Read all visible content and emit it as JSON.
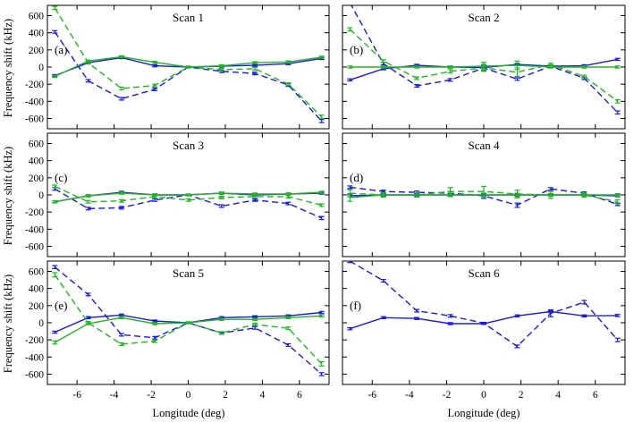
{
  "colors": {
    "blue": "#1a1adc",
    "green": "#22b522",
    "axis": "#000000"
  },
  "chart_data": {
    "type": "line",
    "layout": "3x2 grid of panels, shared x and y axes",
    "xlabel": "Longitude (deg)",
    "ylabel": "Frequency shift (kHz)",
    "xlim": [
      -7.6,
      7.6
    ],
    "ylim": [
      -720,
      720
    ],
    "xticks": [
      -6,
      -4,
      -2,
      0,
      2,
      4,
      6
    ],
    "yticks": [
      -600,
      -400,
      -200,
      0,
      200,
      400,
      600
    ],
    "x": [
      -7.2,
      -5.4,
      -3.6,
      -1.8,
      0,
      1.8,
      3.6,
      5.4,
      7.2
    ],
    "series_styles": [
      {
        "color": "blue",
        "dash": "solid"
      },
      {
        "color": "blue",
        "dash": "dashed"
      },
      {
        "color": "green",
        "dash": "solid"
      },
      {
        "color": "green",
        "dash": "dashed"
      }
    ],
    "panels": [
      {
        "title": "Scan 1",
        "letter": "(a)",
        "series": [
          {
            "values": [
              -100,
              50,
              110,
              15,
              0,
              10,
              20,
              40,
              100
            ],
            "err": [
              12,
              12,
              12,
              12,
              10,
              12,
              12,
              12,
              12
            ]
          },
          {
            "values": [
              410,
              -160,
              -370,
              -260,
              0,
              -50,
              -75,
              -210,
              -630
            ],
            "err": [
              15,
              15,
              15,
              15,
              10,
              15,
              15,
              15,
              18
            ]
          },
          {
            "values": [
              -110,
              70,
              120,
              55,
              0,
              15,
              50,
              60,
              115
            ],
            "err": [
              12,
              12,
              12,
              12,
              10,
              12,
              12,
              12,
              12
            ]
          },
          {
            "values": [
              690,
              50,
              -250,
              -215,
              0,
              -30,
              -20,
              -200,
              -580
            ],
            "err": [
              18,
              15,
              15,
              15,
              10,
              15,
              15,
              15,
              18
            ]
          }
        ]
      },
      {
        "title": "Scan 2",
        "letter": "(b)",
        "series": [
          {
            "values": [
              -150,
              -20,
              20,
              0,
              -5,
              30,
              10,
              15,
              90
            ],
            "err": [
              12,
              12,
              12,
              12,
              30,
              12,
              12,
              12,
              12
            ]
          },
          {
            "values": [
              750,
              40,
              -220,
              -150,
              -10,
              -140,
              10,
              -130,
              -530
            ],
            "err": [
              18,
              15,
              15,
              15,
              30,
              15,
              15,
              15,
              18
            ]
          },
          {
            "values": [
              0,
              0,
              0,
              0,
              10,
              20,
              0,
              0,
              0
            ],
            "err": [
              12,
              12,
              12,
              12,
              45,
              50,
              12,
              12,
              12
            ]
          },
          {
            "values": [
              440,
              70,
              -130,
              -50,
              -10,
              -60,
              30,
              -110,
              -400
            ],
            "err": [
              18,
              15,
              15,
              20,
              40,
              50,
              15,
              15,
              18
            ]
          }
        ]
      },
      {
        "title": "Scan 3",
        "letter": "(c)",
        "series": [
          {
            "values": [
              -80,
              -10,
              30,
              0,
              0,
              20,
              0,
              10,
              20
            ],
            "err": [
              12,
              12,
              12,
              12,
              10,
              12,
              12,
              12,
              12
            ]
          },
          {
            "values": [
              70,
              -160,
              -150,
              -60,
              0,
              -130,
              -60,
              -100,
              -270
            ],
            "err": [
              15,
              15,
              15,
              15,
              10,
              15,
              15,
              15,
              18
            ]
          },
          {
            "values": [
              -80,
              -10,
              20,
              0,
              0,
              20,
              10,
              10,
              30
            ],
            "err": [
              12,
              12,
              12,
              12,
              10,
              12,
              12,
              12,
              12
            ]
          },
          {
            "values": [
              100,
              -80,
              -70,
              -20,
              -60,
              -30,
              -20,
              -20,
              -120
            ],
            "err": [
              15,
              15,
              15,
              15,
              15,
              15,
              15,
              15,
              15
            ]
          }
        ]
      },
      {
        "title": "Scan 4",
        "letter": "(d)",
        "series": [
          {
            "values": [
              -10,
              0,
              0,
              0,
              0,
              0,
              0,
              0,
              -10
            ],
            "err": [
              12,
              12,
              12,
              12,
              12,
              12,
              12,
              12,
              12
            ]
          },
          {
            "values": [
              90,
              40,
              30,
              20,
              -10,
              -120,
              70,
              20,
              -110
            ],
            "err": [
              15,
              15,
              15,
              20,
              30,
              25,
              15,
              15,
              15
            ]
          },
          {
            "values": [
              -30,
              0,
              0,
              0,
              0,
              0,
              0,
              0,
              0
            ],
            "err": [
              45,
              20,
              20,
              20,
              20,
              20,
              15,
              15,
              15
            ]
          },
          {
            "values": [
              20,
              0,
              0,
              40,
              40,
              10,
              0,
              0,
              -80
            ],
            "err": [
              40,
              25,
              25,
              45,
              60,
              45,
              40,
              25,
              25
            ]
          }
        ]
      },
      {
        "title": "Scan 5",
        "letter": "(e)",
        "series": [
          {
            "values": [
              -110,
              60,
              90,
              20,
              0,
              60,
              70,
              80,
              120
            ],
            "err": [
              12,
              12,
              12,
              12,
              10,
              12,
              12,
              12,
              12
            ]
          },
          {
            "values": [
              650,
              330,
              -140,
              -175,
              0,
              -120,
              -60,
              -260,
              -600
            ],
            "err": [
              18,
              15,
              15,
              15,
              10,
              15,
              15,
              15,
              18
            ]
          },
          {
            "values": [
              -230,
              -10,
              60,
              -10,
              0,
              40,
              40,
              60,
              80
            ],
            "err": [
              18,
              12,
              12,
              12,
              10,
              12,
              12,
              12,
              12
            ]
          },
          {
            "values": [
              560,
              0,
              -250,
              -215,
              0,
              -120,
              -20,
              -65,
              -480
            ],
            "err": [
              25,
              15,
              15,
              15,
              10,
              15,
              15,
              15,
              25
            ]
          }
        ]
      },
      {
        "title": "Scan 6",
        "letter": "(f)",
        "series": [
          {
            "values": [
              -70,
              60,
              50,
              -10,
              -10,
              80,
              130,
              80,
              85
            ],
            "err": [
              12,
              12,
              12,
              12,
              10,
              12,
              12,
              12,
              12
            ]
          },
          {
            "values": [
              720,
              490,
              140,
              80,
              -5,
              -275,
              110,
              240,
              -200
            ],
            "err": [
              18,
              15,
              15,
              15,
              10,
              15,
              40,
              20,
              20
            ]
          }
        ]
      }
    ]
  }
}
